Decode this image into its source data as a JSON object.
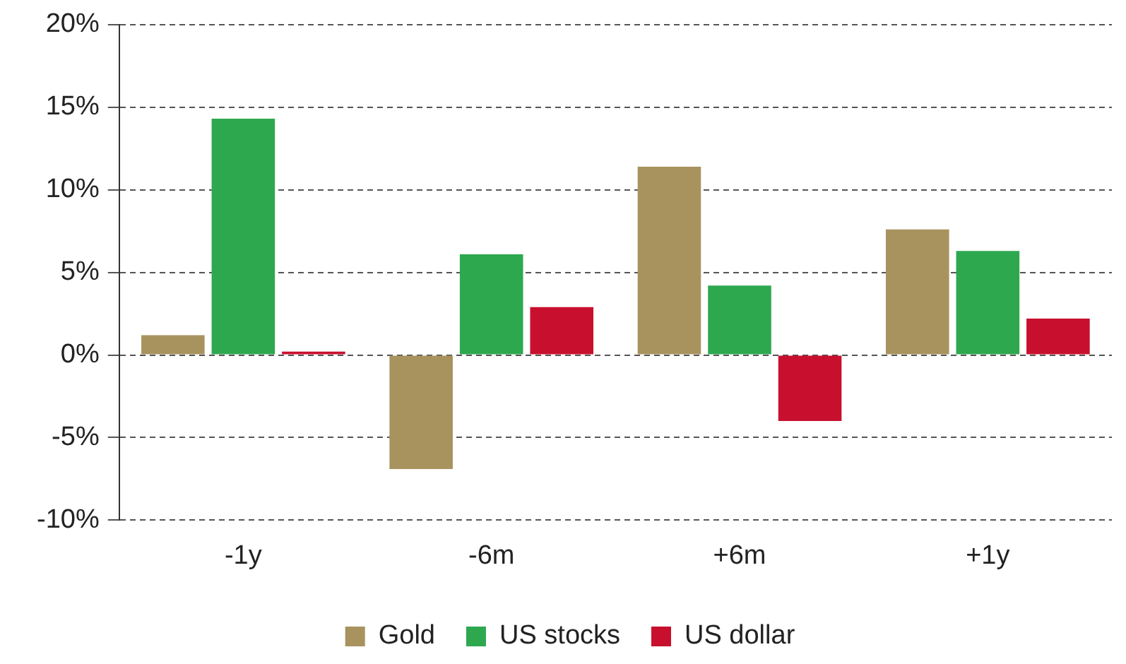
{
  "chart_data": {
    "type": "bar",
    "categories": [
      "-1y",
      "-6m",
      "+6m",
      "+1y"
    ],
    "series": [
      {
        "name": "Gold",
        "color": "#a8935f",
        "values": [
          1.2,
          -6.9,
          11.4,
          7.6
        ]
      },
      {
        "name": "US stocks",
        "color": "#2ea84f",
        "values": [
          14.3,
          6.1,
          4.2,
          6.3
        ]
      },
      {
        "name": "US dollar",
        "color": "#c8102e",
        "values": [
          0.2,
          2.9,
          -4.0,
          2.2
        ]
      }
    ],
    "ylim": [
      -10,
      20
    ],
    "yticks": [
      {
        "value": -10,
        "label": "-10%"
      },
      {
        "value": -5,
        "label": "-5%"
      },
      {
        "value": 0,
        "label": "0%"
      },
      {
        "value": 5,
        "label": "5%"
      },
      {
        "value": 10,
        "label": "10%"
      },
      {
        "value": 15,
        "label": "15%"
      },
      {
        "value": 20,
        "label": "20%"
      }
    ],
    "grid": "y",
    "legend": "bottom"
  }
}
